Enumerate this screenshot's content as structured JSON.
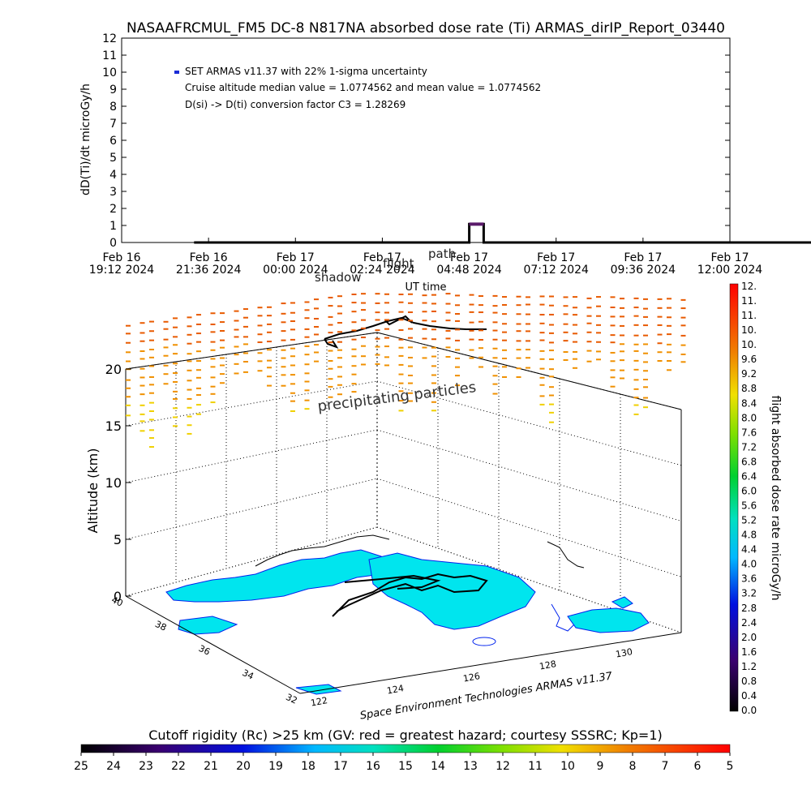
{
  "title": "NASAAFRCMUL_FM5 DC-8   N817NA absorbed dose rate (Ti) ARMAS_dirIP_Report_03440",
  "time_chart": {
    "ylabel": "dD(Ti)/dt microGy/h",
    "xlabel": "UT time",
    "yticks": [
      "0",
      "1",
      "2",
      "3",
      "4",
      "5",
      "6",
      "7",
      "8",
      "9",
      "10",
      "11",
      "12"
    ],
    "ylim": [
      0,
      12
    ],
    "xticks": [
      {
        "line1": "Feb 16",
        "line2": "19:12 2024"
      },
      {
        "line1": "Feb 16",
        "line2": "21:36 2024"
      },
      {
        "line1": "Feb 17",
        "line2": "00:00 2024"
      },
      {
        "line1": "Feb 17",
        "line2": "02:24 2024"
      },
      {
        "line1": "Feb 17",
        "line2": "04:48 2024"
      },
      {
        "line1": "Feb 17",
        "line2": "07:12 2024"
      },
      {
        "line1": "Feb 17",
        "line2": "09:36 2024"
      },
      {
        "line1": "Feb 17",
        "line2": "12:00 2024"
      }
    ],
    "legend": [
      "SET ARMAS v11.37 with 22% 1-sigma uncertainty",
      "Cruise altitude median value = 1.0774562 and mean value = 1.0774562",
      "D(si) -> D(ti) conversion factor C3 = 1.28269"
    ],
    "overlay_labels": [
      "shadow",
      "flight",
      "path"
    ],
    "legend_color": "#1a2bd6"
  },
  "chart_data": {
    "type": "line",
    "title": "NASAAFRCMUL_FM5 DC-8   N817NA absorbed dose rate (Ti) ARMAS_dirIP_Report_03440",
    "xlabel": "UT time",
    "ylabel": "dD(Ti)/dt microGy/h",
    "ylim": [
      0,
      12
    ],
    "x_hours_from_start": [
      2.0,
      9.6,
      9.6,
      10.0,
      10.0,
      11.3,
      25.5
    ],
    "series": [
      {
        "name": "SET ARMAS v11.37 with 22% 1-sigma uncertainty",
        "values": [
          0,
          0,
          1.08,
          1.08,
          0,
          0,
          0
        ]
      }
    ],
    "altitude_axis": {
      "label": "Altitude (km)",
      "ticks": [
        "0",
        "5",
        "10",
        "15",
        "20"
      ]
    },
    "lat_ticks": [
      "32",
      "34",
      "36",
      "38",
      "40"
    ],
    "lon_ticks": [
      "122",
      "124",
      "126",
      "128",
      "130"
    ],
    "annotation": "precipitating particles",
    "credit": "Space Environment Technologies ARMAS v11.37",
    "dose_colorbar": {
      "label": "flight absorbed dose rate microGy/h",
      "ticks": [
        "0.0",
        "0.4",
        "0.8",
        "1.2",
        "1.6",
        "2.0",
        "2.4",
        "2.8",
        "3.2",
        "3.6",
        "4.0",
        "4.4",
        "4.8",
        "5.2",
        "5.6",
        "6.0",
        "6.4",
        "6.8",
        "7.2",
        "7.6",
        "8.0",
        "8.4",
        "8.8",
        "9.2",
        "9.6",
        "10.",
        "10.",
        "11.",
        "11.",
        "12."
      ]
    },
    "rigidity_colorbar": {
      "label": "Cutoff rigidity (Rc) >25 km (GV: red = greatest hazard; courtesy SSSRC; Kp=1)",
      "ticks": [
        "25",
        "24",
        "23",
        "22",
        "21",
        "20",
        "19",
        "18",
        "17",
        "16",
        "15",
        "14",
        "13",
        "12",
        "11",
        "10",
        "9",
        "8",
        "7",
        "6",
        "5"
      ]
    }
  },
  "colors": {
    "land": "#00e5ee",
    "coast": "#0022ee",
    "flight_path": "#000000",
    "particles_high": "#e85a00",
    "particles_mid": "#f09000",
    "particles_low": "#f0d000"
  }
}
